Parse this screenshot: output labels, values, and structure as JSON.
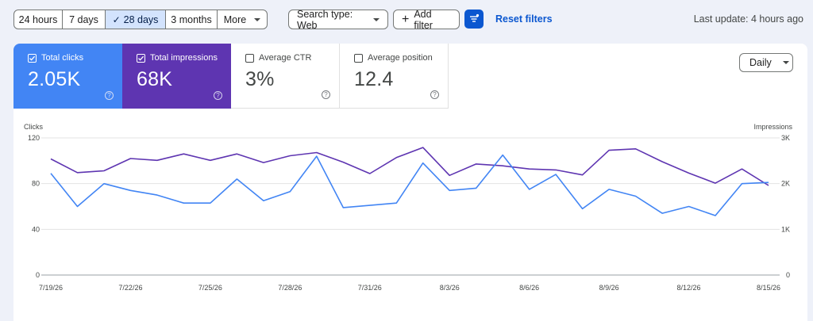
{
  "toolbar": {
    "date_ranges": [
      {
        "label": "24 hours",
        "selected": false
      },
      {
        "label": "7 days",
        "selected": false
      },
      {
        "label": "28 days",
        "selected": true
      },
      {
        "label": "3 months",
        "selected": false
      }
    ],
    "more_label": "More",
    "search_type_label": "Search type: Web",
    "add_filter_label": "Add filter",
    "reset_label": "Reset filters",
    "last_update": "Last update: 4 hours ago"
  },
  "metrics": [
    {
      "label": "Total clicks",
      "value": "2.05K",
      "checked": true,
      "color": "#4285f4"
    },
    {
      "label": "Total impressions",
      "value": "68K",
      "checked": true,
      "color": "#5e35b1"
    },
    {
      "label": "Average CTR",
      "value": "3%",
      "checked": false
    },
    {
      "label": "Average position",
      "value": "12.4",
      "checked": false
    }
  ],
  "granularity": "Daily",
  "chart_data": {
    "type": "line",
    "left_axis_label": "Clicks",
    "right_axis_label": "Impressions",
    "left_ticks": [
      "0",
      "40",
      "80",
      "120"
    ],
    "right_ticks": [
      "0",
      "1K",
      "2K",
      "3K"
    ],
    "ylim_left": [
      0,
      120
    ],
    "ylim_right": [
      0,
      3000
    ],
    "x_ticks": [
      "7/19/26",
      "7/22/26",
      "7/25/26",
      "7/28/26",
      "7/31/26",
      "8/3/26",
      "8/6/26",
      "8/9/26",
      "8/12/26",
      "8/15/26"
    ],
    "grid": true,
    "series": [
      {
        "name": "Clicks",
        "axis": "left",
        "color": "#4285f4",
        "values": [
          89,
          60,
          80,
          74,
          70,
          63,
          63,
          84,
          65,
          73,
          104,
          59,
          61,
          63,
          98,
          74,
          76,
          105,
          75,
          88,
          58,
          75,
          69,
          54,
          60,
          52,
          80,
          81
        ]
      },
      {
        "name": "Impressions",
        "axis": "right",
        "color": "#5e35b1",
        "values": [
          2540,
          2240,
          2280,
          2550,
          2510,
          2650,
          2510,
          2650,
          2460,
          2610,
          2680,
          2470,
          2220,
          2570,
          2790,
          2180,
          2430,
          2390,
          2320,
          2300,
          2190,
          2730,
          2760,
          2480,
          2230,
          2010,
          2320,
          1960
        ]
      }
    ]
  }
}
